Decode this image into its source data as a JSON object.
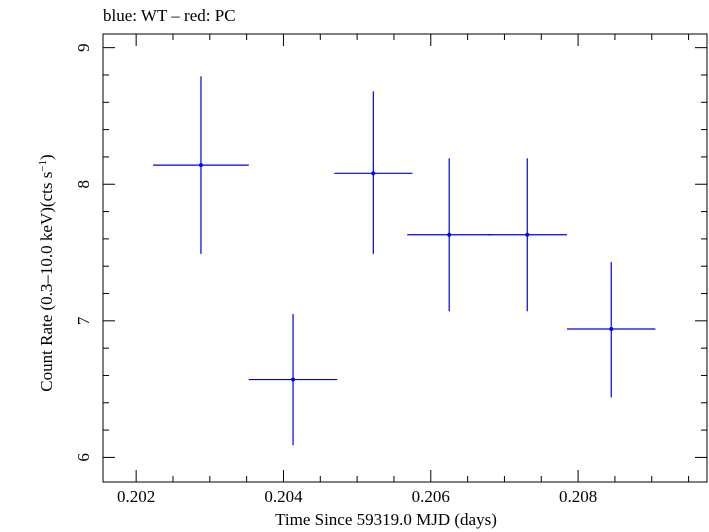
{
  "chart_data": {
    "type": "scatter",
    "title": "blue: WT – red: PC",
    "xlabel": "Time Since 59319.0 MJD (days)",
    "ylabel_main": "Count Rate (0.3–10.0 keV)(cts s",
    "ylabel_sup": "−1",
    "ylabel_end": ")",
    "xlim": [
      0.20155,
      0.20975
    ],
    "ylim": [
      5.82,
      9.1
    ],
    "xticks": [
      0.202,
      0.204,
      0.206,
      0.208
    ],
    "xtick_labels": [
      "0.202",
      "0.204",
      "0.206",
      "0.208"
    ],
    "yticks": [
      6,
      7,
      8,
      9
    ],
    "ytick_labels": [
      "6",
      "7",
      "8",
      "9"
    ],
    "series": [
      {
        "name": "WT",
        "color": "#0000ee",
        "points": [
          {
            "x": 0.20288,
            "y": 8.14,
            "xerr": 0.00065,
            "yerr_lo": 0.65,
            "yerr_hi": 0.65
          },
          {
            "x": 0.20413,
            "y": 6.57,
            "xerr": 0.0006,
            "yerr_lo": 0.48,
            "yerr_hi": 0.48
          },
          {
            "x": 0.20522,
            "y": 8.08,
            "xerr": 0.00053,
            "yerr_lo": 0.59,
            "yerr_hi": 0.6
          },
          {
            "x": 0.20625,
            "y": 7.63,
            "xerr": 0.00057,
            "yerr_lo": 0.56,
            "yerr_hi": 0.56
          },
          {
            "x": 0.20731,
            "y": 7.63,
            "xerr": 0.00054,
            "yerr_lo": 0.56,
            "yerr_hi": 0.56
          },
          {
            "x": 0.20845,
            "y": 6.94,
            "xerr": 0.0006,
            "yerr_lo": 0.5,
            "yerr_hi": 0.49
          }
        ]
      }
    ]
  }
}
